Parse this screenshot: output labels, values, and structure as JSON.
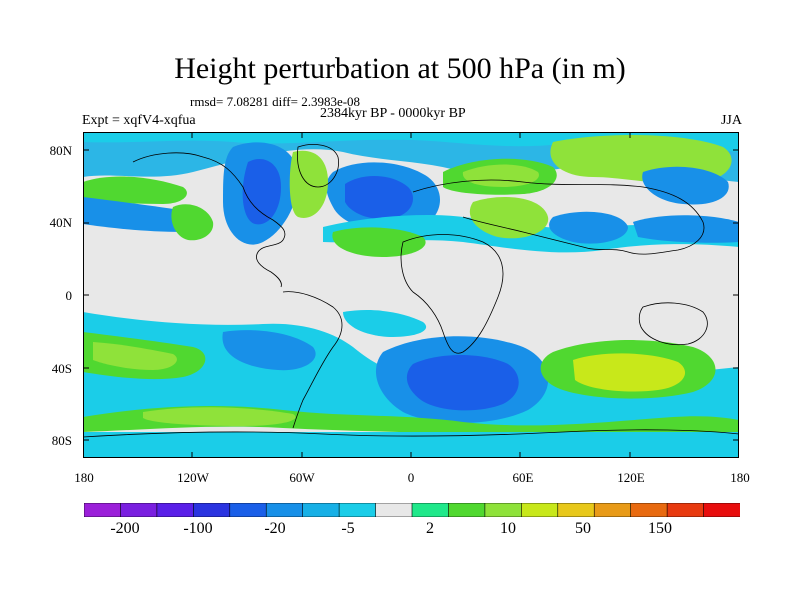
{
  "title": "Height perturbation at 500 hPa (in m)",
  "stats": "rmsd= 7.08281 diff= 2.3983e-08",
  "experiment": "Expt = xqfV4-xqfua",
  "period": "2384kyr BP - 0000kyr BP",
  "season": "JJA",
  "lat_labels": [
    "80N",
    "40N",
    "0",
    "40S",
    "80S"
  ],
  "lon_labels": [
    "180",
    "120W",
    "60W",
    "0",
    "60E",
    "120E",
    "180"
  ],
  "colorbar": {
    "colors": [
      "#9b1fd9",
      "#7a1fe0",
      "#5a20e8",
      "#2b34e0",
      "#1a5fe8",
      "#1890e8",
      "#17b0e6",
      "#1bcde8",
      "#e8e8e8",
      "#20e88a",
      "#50d830",
      "#8fe23a",
      "#c8e81a",
      "#e8c81a",
      "#e89a18",
      "#e86a10",
      "#e83a10",
      "#e80d0d"
    ],
    "labels": [
      "-200",
      "-100",
      "-20",
      "-5",
      "2",
      "10",
      "50",
      "150"
    ]
  }
}
